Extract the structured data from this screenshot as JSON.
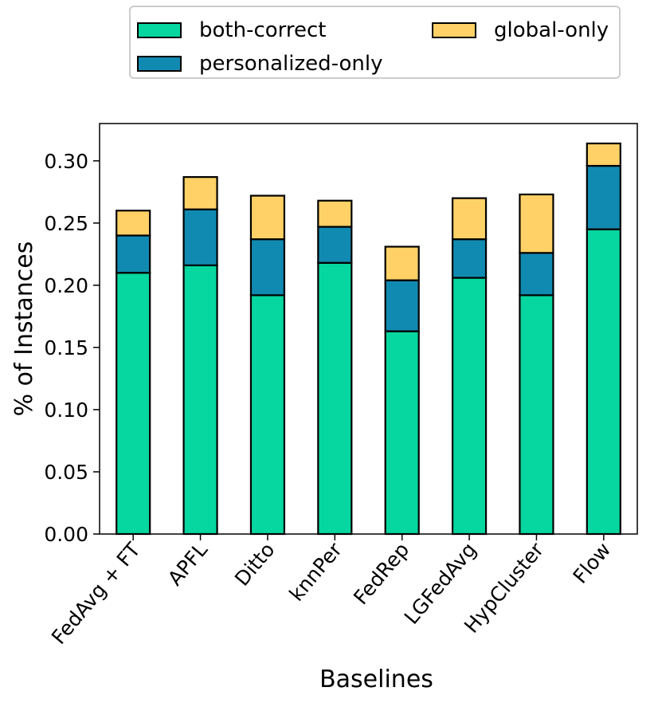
{
  "chart_data": {
    "type": "bar",
    "stacked": true,
    "title": "",
    "xlabel": "Baselines",
    "ylabel": "% of Instances",
    "ylim": [
      0,
      0.33
    ],
    "yticks": [
      "0.00",
      "0.05",
      "0.10",
      "0.15",
      "0.20",
      "0.25",
      "0.30"
    ],
    "categories": [
      "FedAvg + FT",
      "APFL",
      "Ditto",
      "knnPer",
      "FedRep",
      "LGFedAvg",
      "HypCluster",
      "Flow"
    ],
    "series": [
      {
        "name": "both-correct",
        "color": "#06d6a0",
        "values": [
          0.21,
          0.216,
          0.192,
          0.218,
          0.163,
          0.206,
          0.192,
          0.245
        ]
      },
      {
        "name": "personalized-only",
        "color": "#118ab2",
        "values": [
          0.03,
          0.045,
          0.045,
          0.029,
          0.041,
          0.031,
          0.034,
          0.051
        ]
      },
      {
        "name": "global-only",
        "color": "#ffd166",
        "values": [
          0.02,
          0.026,
          0.035,
          0.021,
          0.027,
          0.033,
          0.047,
          0.018
        ]
      }
    ],
    "legend": {
      "position": "top-center",
      "columns": 2
    }
  }
}
